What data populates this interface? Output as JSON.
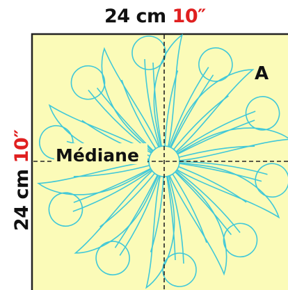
{
  "dimension_top": {
    "value": "24 cm",
    "inches": "10″"
  },
  "dimension_side": {
    "value": "24 cm",
    "inches": "10″"
  },
  "center_label": "Médiane",
  "corner_label": "A",
  "colors": {
    "background": "#fbfbb8",
    "outline": "#40c8d8",
    "guide": "#222222",
    "inch_text": "#e02020"
  }
}
